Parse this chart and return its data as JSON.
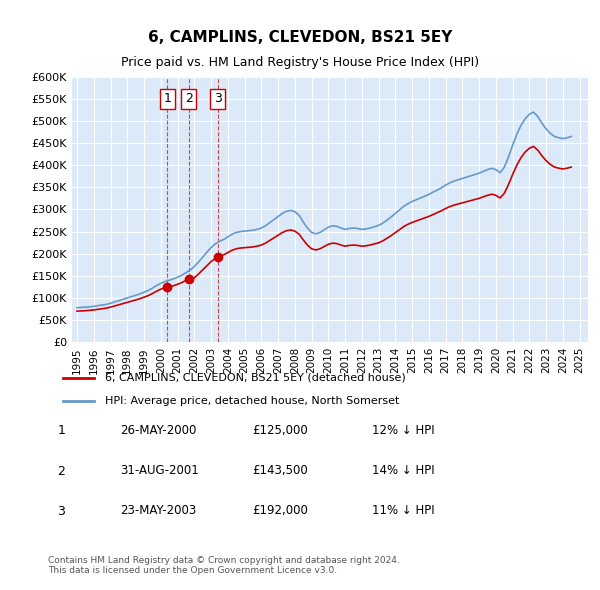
{
  "title": "6, CAMPLINS, CLEVEDON, BS21 5EY",
  "subtitle": "Price paid vs. HM Land Registry's House Price Index (HPI)",
  "ylabel": "",
  "background_color": "#dce9f8",
  "plot_bg_color": "#dce9f8",
  "ylim": [
    0,
    600000
  ],
  "yticks": [
    0,
    50000,
    100000,
    150000,
    200000,
    250000,
    300000,
    350000,
    400000,
    450000,
    500000,
    550000,
    600000
  ],
  "xlim_start": 1995.0,
  "xlim_end": 2025.5,
  "legend_entries": [
    "6, CAMPLINS, CLEVEDON, BS21 5EY (detached house)",
    "HPI: Average price, detached house, North Somerset"
  ],
  "line_colors": [
    "#cc0000",
    "#6699cc"
  ],
  "transactions": [
    {
      "label": "1",
      "date": "26-MAY-2000",
      "price": 125000,
      "hpi_diff": "12% ↓ HPI",
      "x": 2000.4
    },
    {
      "label": "2",
      "date": "31-AUG-2001",
      "price": 143500,
      "hpi_diff": "14% ↓ HPI",
      "x": 2001.67
    },
    {
      "label": "3",
      "date": "23-MAY-2003",
      "price": 192000,
      "hpi_diff": "11% ↓ HPI",
      "x": 2003.4
    }
  ],
  "footer": "Contains HM Land Registry data © Crown copyright and database right 2024.\nThis data is licensed under the Open Government Licence v3.0.",
  "hpi_data_x": [
    1995.0,
    1995.25,
    1995.5,
    1995.75,
    1996.0,
    1996.25,
    1996.5,
    1996.75,
    1997.0,
    1997.25,
    1997.5,
    1997.75,
    1998.0,
    1998.25,
    1998.5,
    1998.75,
    1999.0,
    1999.25,
    1999.5,
    1999.75,
    2000.0,
    2000.25,
    2000.5,
    2000.75,
    2001.0,
    2001.25,
    2001.5,
    2001.75,
    2002.0,
    2002.25,
    2002.5,
    2002.75,
    2003.0,
    2003.25,
    2003.5,
    2003.75,
    2004.0,
    2004.25,
    2004.5,
    2004.75,
    2005.0,
    2005.25,
    2005.5,
    2005.75,
    2006.0,
    2006.25,
    2006.5,
    2006.75,
    2007.0,
    2007.25,
    2007.5,
    2007.75,
    2008.0,
    2008.25,
    2008.5,
    2008.75,
    2009.0,
    2009.25,
    2009.5,
    2009.75,
    2010.0,
    2010.25,
    2010.5,
    2010.75,
    2011.0,
    2011.25,
    2011.5,
    2011.75,
    2012.0,
    2012.25,
    2012.5,
    2012.75,
    2013.0,
    2013.25,
    2013.5,
    2013.75,
    2014.0,
    2014.25,
    2014.5,
    2014.75,
    2015.0,
    2015.25,
    2015.5,
    2015.75,
    2016.0,
    2016.25,
    2016.5,
    2016.75,
    2017.0,
    2017.25,
    2017.5,
    2017.75,
    2018.0,
    2018.25,
    2018.5,
    2018.75,
    2019.0,
    2019.25,
    2019.5,
    2019.75,
    2020.0,
    2020.25,
    2020.5,
    2020.75,
    2021.0,
    2021.25,
    2021.5,
    2021.75,
    2022.0,
    2022.25,
    2022.5,
    2022.75,
    2023.0,
    2023.25,
    2023.5,
    2023.75,
    2024.0,
    2024.25,
    2024.5
  ],
  "hpi_data_y": [
    78000,
    78500,
    79000,
    80000,
    81000,
    82500,
    84000,
    85500,
    88000,
    91000,
    94000,
    97000,
    100000,
    103000,
    106000,
    109000,
    113000,
    117000,
    122000,
    128000,
    133000,
    137000,
    140000,
    143000,
    147000,
    151000,
    157000,
    163000,
    171000,
    181000,
    192000,
    203000,
    214000,
    222000,
    228000,
    232000,
    238000,
    244000,
    248000,
    250000,
    251000,
    252000,
    253000,
    255000,
    258000,
    263000,
    270000,
    277000,
    284000,
    291000,
    296000,
    298000,
    295000,
    287000,
    272000,
    258000,
    248000,
    245000,
    248000,
    254000,
    260000,
    263000,
    262000,
    258000,
    255000,
    257000,
    258000,
    257000,
    255000,
    256000,
    258000,
    261000,
    264000,
    269000,
    276000,
    283000,
    291000,
    299000,
    307000,
    313000,
    318000,
    322000,
    326000,
    330000,
    334000,
    339000,
    344000,
    349000,
    355000,
    360000,
    364000,
    367000,
    370000,
    373000,
    376000,
    379000,
    382000,
    386000,
    390000,
    393000,
    390000,
    383000,
    395000,
    418000,
    445000,
    470000,
    490000,
    505000,
    515000,
    520000,
    510000,
    495000,
    482000,
    472000,
    465000,
    462000,
    460000,
    462000,
    465000
  ],
  "price_data_x": [
    2000.4,
    2001.67,
    2003.4
  ],
  "price_data_y": [
    125000,
    143500,
    192000
  ]
}
